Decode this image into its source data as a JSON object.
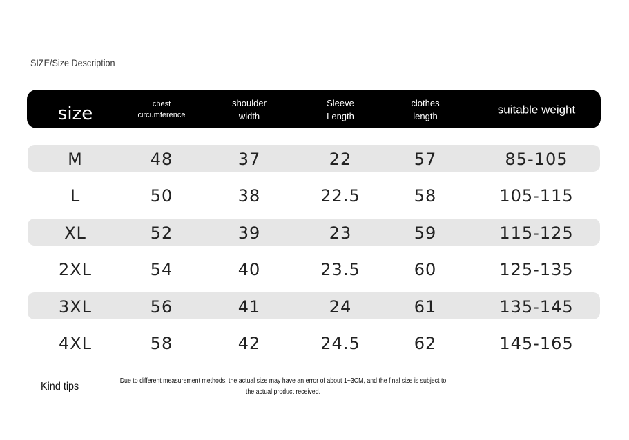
{
  "title": "SIZE/Size Description",
  "table": {
    "header": [
      [
        "size"
      ],
      [
        "chest",
        "circumference"
      ],
      [
        "shoulder",
        "width"
      ],
      [
        "Sleeve",
        "Length"
      ],
      [
        "clothes",
        "length"
      ],
      [
        "suitable weight"
      ]
    ],
    "rows": [
      [
        "M",
        48,
        37,
        22,
        57,
        "85-105"
      ],
      [
        "L",
        50,
        38,
        22.5,
        58,
        "105-115"
      ],
      [
        "XL",
        52,
        39,
        23,
        59,
        "115-125"
      ],
      [
        "2XL",
        54,
        40,
        23.5,
        60,
        "125-135"
      ],
      [
        "3XL",
        56,
        41,
        24,
        61,
        "135-145"
      ],
      [
        "4XL",
        58,
        42,
        24.5,
        62,
        "145-165"
      ]
    ]
  },
  "tips": {
    "label": "Kind tips",
    "text": "Due to different measurement methods, the actual size may have an error of about 1~3CM, and the final size is subject to the actual product received."
  }
}
